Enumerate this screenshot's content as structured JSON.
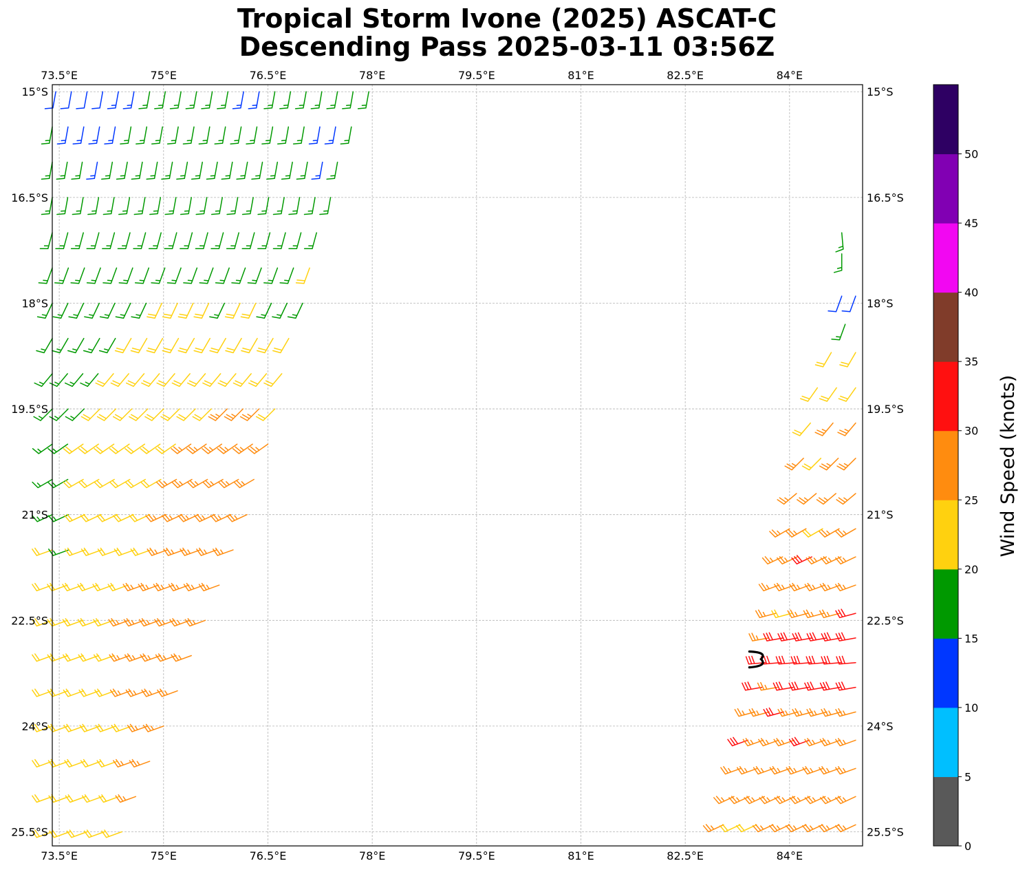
{
  "title": {
    "line1": "Tropical Storm Ivone (2025) ASCAT-C",
    "line2": "Descending Pass 2025-03-11 03:56Z"
  },
  "map": {
    "lon_range": [
      73.4,
      85.05
    ],
    "lat_range": [
      -25.7,
      -14.9
    ],
    "lon_ticks": [
      {
        "value": 73.5,
        "label": "73.5°E"
      },
      {
        "value": 75.0,
        "label": "75°E"
      },
      {
        "value": 76.5,
        "label": "76.5°E"
      },
      {
        "value": 78.0,
        "label": "78°E"
      },
      {
        "value": 79.5,
        "label": "79.5°E"
      },
      {
        "value": 81.0,
        "label": "81°E"
      },
      {
        "value": 82.5,
        "label": "82.5°E"
      },
      {
        "value": 84.0,
        "label": "84°E"
      }
    ],
    "lat_ticks": [
      {
        "value": -15.0,
        "label": "15°S"
      },
      {
        "value": -16.5,
        "label": "16.5°S"
      },
      {
        "value": -18.0,
        "label": "18°S"
      },
      {
        "value": -19.5,
        "label": "19.5°S"
      },
      {
        "value": -21.0,
        "label": "21°S"
      },
      {
        "value": -22.5,
        "label": "22.5°S"
      },
      {
        "value": -24.0,
        "label": "24°S"
      },
      {
        "value": -25.5,
        "label": "25.5°S"
      }
    ],
    "gridlines": true,
    "storm_center": {
      "lon": 83.55,
      "lat": -23.05
    }
  },
  "colorbar": {
    "label": "Wind Speed (knots)",
    "bounds": [
      0,
      5,
      10,
      15,
      20,
      25,
      30,
      35,
      40,
      45,
      50,
      55
    ],
    "tick_labels": [
      "0",
      "5",
      "10",
      "15",
      "20",
      "25",
      "30",
      "35",
      "40",
      "45",
      "50"
    ],
    "colors": [
      "#595959",
      "#00bfff",
      "#0037ff",
      "#009900",
      "#ffd10f",
      "#ff8c0f",
      "#ff1010",
      "#803c2a",
      "#f207f2",
      "#8100b3",
      "#2e0063"
    ]
  },
  "chart_data": {
    "type": "scatter",
    "title": "Tropical Storm Ivone (2025) ASCAT-C Descending Pass 2025-03-11 03:56Z",
    "xlabel": "",
    "ylabel": "",
    "colorbar_label": "Wind Speed (knots)",
    "xlim": [
      73.4,
      85.05
    ],
    "ylim": [
      -25.7,
      -14.9
    ],
    "grid": true,
    "swaths": [
      {
        "lat": -15.0,
        "lon_start": 73.45,
        "lon_end": 77.95,
        "dir_from": 190,
        "speeds": [
          12,
          12,
          12,
          12,
          13,
          14,
          16,
          17,
          17,
          17,
          17,
          17,
          13,
          13,
          16,
          17,
          17,
          17,
          17,
          17,
          17
        ]
      },
      {
        "lat": -15.5,
        "lon_start": 73.4,
        "lon_end": 77.7,
        "dir_from": 190,
        "speeds": [
          17,
          13,
          13,
          13,
          13,
          16,
          17,
          17,
          17,
          17,
          17,
          17,
          17,
          17,
          17,
          17,
          17,
          13,
          13,
          17
        ]
      },
      {
        "lat": -16.0,
        "lon_start": 73.4,
        "lon_end": 77.5,
        "dir_from": 190,
        "speeds": [
          17,
          17,
          17,
          13,
          17,
          17,
          17,
          17,
          17,
          17,
          17,
          17,
          17,
          17,
          17,
          17,
          17,
          17,
          13,
          17
        ]
      },
      {
        "lat": -16.5,
        "lon_start": 73.4,
        "lon_end": 77.4,
        "dir_from": 190,
        "speeds": [
          17,
          17,
          17,
          17,
          17,
          17,
          17,
          17,
          17,
          17,
          17,
          17,
          17,
          17,
          17,
          17,
          17,
          17,
          17
        ]
      },
      {
        "lat": -17.0,
        "lon_start": 73.4,
        "lon_end": 77.2,
        "dir_from": 195,
        "speeds": [
          17,
          17,
          17,
          17,
          17,
          17,
          17,
          17,
          17,
          17,
          17,
          17,
          17,
          17,
          17,
          17,
          17,
          17
        ]
      },
      {
        "lat": -17.5,
        "lon_start": 73.4,
        "lon_end": 77.1,
        "dir_from": 200,
        "speeds": [
          17,
          17,
          17,
          17,
          17,
          17,
          17,
          17,
          17,
          17,
          17,
          17,
          17,
          17,
          17,
          17,
          22
        ]
      },
      {
        "lat": -18.0,
        "lon_start": 73.4,
        "lon_end": 77.0,
        "dir_from": 205,
        "speeds": [
          17,
          17,
          17,
          17,
          17,
          17,
          17,
          22,
          22,
          22,
          22,
          17,
          22,
          22,
          17,
          17,
          17
        ]
      },
      {
        "lat": -18.5,
        "lon_start": 73.4,
        "lon_end": 76.8,
        "dir_from": 210,
        "speeds": [
          17,
          17,
          17,
          17,
          17,
          22,
          22,
          22,
          22,
          22,
          22,
          22,
          22,
          22,
          22,
          22
        ]
      },
      {
        "lat": -19.0,
        "lon_start": 73.4,
        "lon_end": 76.7,
        "dir_from": 220,
        "speeds": [
          17,
          17,
          17,
          17,
          22,
          22,
          22,
          22,
          22,
          22,
          22,
          22,
          22,
          22,
          22,
          22
        ]
      },
      {
        "lat": -19.5,
        "lon_start": 73.4,
        "lon_end": 76.6,
        "dir_from": 225,
        "speeds": [
          17,
          17,
          17,
          22,
          22,
          22,
          22,
          22,
          22,
          22,
          22,
          27,
          27,
          27,
          22
        ]
      },
      {
        "lat": -20.0,
        "lon_start": 73.4,
        "lon_end": 76.5,
        "dir_from": 235,
        "speeds": [
          17,
          17,
          22,
          22,
          22,
          22,
          22,
          22,
          22,
          27,
          27,
          27,
          27,
          27,
          27
        ]
      },
      {
        "lat": -20.5,
        "lon_start": 73.4,
        "lon_end": 76.3,
        "dir_from": 240,
        "speeds": [
          17,
          17,
          22,
          22,
          22,
          22,
          22,
          22,
          27,
          27,
          27,
          27,
          27,
          27
        ]
      },
      {
        "lat": -21.0,
        "lon_start": 73.4,
        "lon_end": 76.2,
        "dir_from": 245,
        "speeds": [
          17,
          17,
          22,
          22,
          22,
          22,
          22,
          27,
          27,
          27,
          27,
          27,
          27
        ]
      },
      {
        "lat": -21.5,
        "lon_start": 73.4,
        "lon_end": 76.0,
        "dir_from": 250,
        "speeds": [
          22,
          17,
          22,
          22,
          22,
          22,
          22,
          27,
          27,
          27,
          27,
          27
        ]
      },
      {
        "lat": -22.0,
        "lon_start": 73.4,
        "lon_end": 75.8,
        "dir_from": 250,
        "speeds": [
          22,
          22,
          22,
          22,
          22,
          22,
          27,
          27,
          27,
          27,
          27,
          27
        ]
      },
      {
        "lat": -22.5,
        "lon_start": 73.4,
        "lon_end": 75.6,
        "dir_from": 250,
        "speeds": [
          22,
          22,
          22,
          22,
          22,
          27,
          27,
          27,
          27,
          27,
          27
        ]
      },
      {
        "lat": -23.0,
        "lon_start": 73.4,
        "lon_end": 75.4,
        "dir_from": 250,
        "speeds": [
          22,
          22,
          22,
          22,
          22,
          27,
          27,
          27,
          27,
          27
        ]
      },
      {
        "lat": -23.5,
        "lon_start": 73.4,
        "lon_end": 75.2,
        "dir_from": 250,
        "speeds": [
          22,
          22,
          22,
          22,
          22,
          27,
          27,
          27,
          27
        ]
      },
      {
        "lat": -24.0,
        "lon_start": 73.4,
        "lon_end": 75.0,
        "dir_from": 250,
        "speeds": [
          22,
          22,
          22,
          22,
          22,
          22,
          27,
          27
        ]
      },
      {
        "lat": -24.5,
        "lon_start": 73.4,
        "lon_end": 74.8,
        "dir_from": 250,
        "speeds": [
          22,
          22,
          22,
          22,
          22,
          27,
          27
        ]
      },
      {
        "lat": -25.0,
        "lon_start": 73.4,
        "lon_end": 74.6,
        "dir_from": 250,
        "speeds": [
          22,
          22,
          22,
          22,
          22,
          27
        ]
      },
      {
        "lat": -25.5,
        "lon_start": 73.4,
        "lon_end": 74.4,
        "dir_from": 250,
        "speeds": [
          22,
          22,
          22,
          22,
          22
        ]
      },
      {
        "lat": -17.0,
        "lon_start": 84.75,
        "lon_end": 84.75,
        "dir_from": 175,
        "speeds": [
          17
        ]
      },
      {
        "lat": -17.3,
        "lon_start": 84.75,
        "lon_end": 84.75,
        "dir_from": 180,
        "speeds": [
          17
        ]
      },
      {
        "lat": -17.9,
        "lon_start": 84.75,
        "lon_end": 84.95,
        "dir_from": 200,
        "speeds": [
          12,
          12
        ]
      },
      {
        "lat": -18.3,
        "lon_start": 84.8,
        "lon_end": 84.8,
        "dir_from": 200,
        "speeds": [
          17
        ]
      },
      {
        "lat": -18.7,
        "lon_start": 84.6,
        "lon_end": 84.95,
        "dir_from": 210,
        "speeds": [
          22,
          22
        ]
      },
      {
        "lat": -19.2,
        "lon_start": 84.4,
        "lon_end": 84.95,
        "dir_from": 215,
        "speeds": [
          22,
          22,
          22
        ]
      },
      {
        "lat": -19.7,
        "lon_start": 84.3,
        "lon_end": 84.95,
        "dir_from": 220,
        "speeds": [
          22,
          27,
          27
        ]
      },
      {
        "lat": -20.2,
        "lon_start": 84.2,
        "lon_end": 84.95,
        "dir_from": 225,
        "speeds": [
          27,
          22,
          27,
          27
        ]
      },
      {
        "lat": -20.7,
        "lon_start": 84.1,
        "lon_end": 84.95,
        "dir_from": 230,
        "speeds": [
          27,
          27,
          27,
          27
        ]
      },
      {
        "lat": -21.2,
        "lon_start": 84.0,
        "lon_end": 84.95,
        "dir_from": 240,
        "speeds": [
          27,
          27,
          22,
          27,
          27
        ]
      },
      {
        "lat": -21.6,
        "lon_start": 83.9,
        "lon_end": 84.95,
        "dir_from": 245,
        "speeds": [
          27,
          27,
          32,
          27,
          27,
          27
        ]
      },
      {
        "lat": -22.0,
        "lon_start": 83.85,
        "lon_end": 84.95,
        "dir_from": 250,
        "speeds": [
          27,
          27,
          27,
          27,
          27,
          27
        ]
      },
      {
        "lat": -22.4,
        "lon_start": 83.8,
        "lon_end": 84.95,
        "dir_from": 255,
        "speeds": [
          27,
          22,
          27,
          27,
          27,
          32
        ]
      },
      {
        "lat": -22.75,
        "lon_start": 83.7,
        "lon_end": 84.95,
        "dir_from": 260,
        "speeds": [
          27,
          32,
          32,
          32,
          32,
          32,
          32
        ]
      },
      {
        "lat": -23.1,
        "lon_start": 83.65,
        "lon_end": 84.95,
        "dir_from": 265,
        "speeds": [
          32,
          32,
          32,
          32,
          32,
          32,
          32
        ]
      },
      {
        "lat": -23.45,
        "lon_start": 83.6,
        "lon_end": 84.95,
        "dir_from": 260,
        "speeds": [
          32,
          27,
          32,
          32,
          32,
          32,
          32
        ]
      },
      {
        "lat": -23.8,
        "lon_start": 83.5,
        "lon_end": 84.95,
        "dir_from": 255,
        "speeds": [
          27,
          27,
          32,
          27,
          27,
          27,
          27,
          27
        ]
      },
      {
        "lat": -24.2,
        "lon_start": 83.4,
        "lon_end": 84.95,
        "dir_from": 250,
        "speeds": [
          32,
          27,
          27,
          27,
          32,
          27,
          27,
          27
        ]
      },
      {
        "lat": -24.6,
        "lon_start": 83.3,
        "lon_end": 84.95,
        "dir_from": 250,
        "speeds": [
          27,
          27,
          27,
          27,
          27,
          27,
          27,
          27
        ]
      },
      {
        "lat": -25.0,
        "lon_start": 83.2,
        "lon_end": 84.95,
        "dir_from": 245,
        "speeds": [
          27,
          27,
          27,
          27,
          27,
          27,
          27,
          27,
          27
        ]
      },
      {
        "lat": -25.4,
        "lon_start": 83.05,
        "lon_end": 84.95,
        "dir_from": 245,
        "speeds": [
          27,
          22,
          22,
          27,
          27,
          27,
          27,
          27,
          27
        ]
      }
    ]
  }
}
